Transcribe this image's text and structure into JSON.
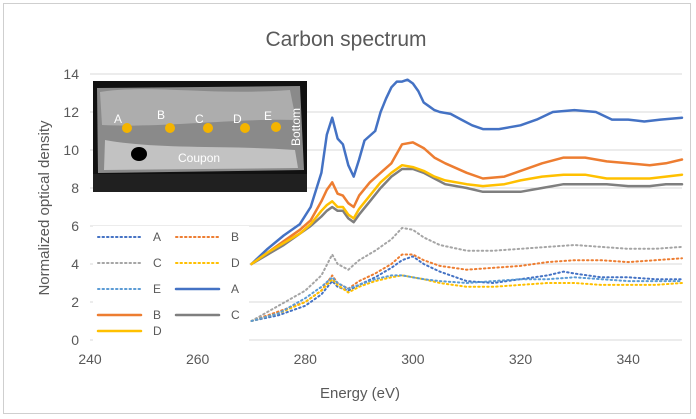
{
  "chart_data": {
    "type": "line",
    "title": "Carbon spectrum",
    "xlabel": "Energy (eV)",
    "ylabel": "Normalized optical density",
    "xlim": [
      240,
      350
    ],
    "ylim": [
      0,
      14
    ],
    "xticks": [
      240,
      260,
      280,
      300,
      320,
      340
    ],
    "yticks": [
      0,
      2,
      4,
      6,
      8,
      10,
      12,
      14
    ],
    "grid": "horizontal",
    "legend_position": "left-bottom, inside plot",
    "inset_image": {
      "description_labels": [
        "A",
        "B",
        "C",
        "D",
        "E"
      ],
      "coupon_label": "Coupon",
      "bottom_label": "Bottom"
    },
    "series": [
      {
        "name": "A",
        "style": "dotted",
        "color": "#4472c4",
        "points": [
          [
            270,
            1.0
          ],
          [
            275,
            1.3
          ],
          [
            280,
            1.8
          ],
          [
            283,
            2.4
          ],
          [
            285,
            3.1
          ],
          [
            286,
            2.8
          ],
          [
            288,
            2.6
          ],
          [
            290,
            2.9
          ],
          [
            293,
            3.3
          ],
          [
            296,
            3.8
          ],
          [
            298,
            4.2
          ],
          [
            300,
            4.4
          ],
          [
            302,
            4.0
          ],
          [
            305,
            3.6
          ],
          [
            310,
            3.1
          ],
          [
            315,
            3.0
          ],
          [
            320,
            3.2
          ],
          [
            325,
            3.4
          ],
          [
            328,
            3.6
          ],
          [
            330,
            3.5
          ],
          [
            335,
            3.3
          ],
          [
            340,
            3.3
          ],
          [
            345,
            3.2
          ],
          [
            350,
            3.2
          ]
        ]
      },
      {
        "name": "B",
        "style": "dotted",
        "color": "#ed7d31",
        "points": [
          [
            270,
            1.0
          ],
          [
            275,
            1.5
          ],
          [
            280,
            2.0
          ],
          [
            283,
            2.6
          ],
          [
            285,
            3.4
          ],
          [
            286,
            3.0
          ],
          [
            288,
            2.7
          ],
          [
            290,
            3.1
          ],
          [
            293,
            3.5
          ],
          [
            296,
            4.0
          ],
          [
            298,
            4.5
          ],
          [
            300,
            4.5
          ],
          [
            302,
            4.2
          ],
          [
            305,
            3.9
          ],
          [
            310,
            3.7
          ],
          [
            315,
            3.8
          ],
          [
            320,
            3.9
          ],
          [
            325,
            4.1
          ],
          [
            330,
            4.2
          ],
          [
            335,
            4.2
          ],
          [
            340,
            4.1
          ],
          [
            345,
            4.2
          ],
          [
            350,
            4.3
          ]
        ]
      },
      {
        "name": "C",
        "style": "dotted",
        "color": "#a5a5a5",
        "points": [
          [
            270,
            1.0
          ],
          [
            275,
            1.8
          ],
          [
            280,
            2.6
          ],
          [
            283,
            3.4
          ],
          [
            285,
            4.5
          ],
          [
            286,
            4.0
          ],
          [
            288,
            3.7
          ],
          [
            290,
            4.2
          ],
          [
            293,
            4.7
          ],
          [
            296,
            5.3
          ],
          [
            298,
            5.9
          ],
          [
            300,
            5.8
          ],
          [
            302,
            5.4
          ],
          [
            305,
            5.0
          ],
          [
            310,
            4.7
          ],
          [
            315,
            4.7
          ],
          [
            320,
            4.8
          ],
          [
            325,
            4.9
          ],
          [
            330,
            5.0
          ],
          [
            335,
            4.9
          ],
          [
            340,
            4.8
          ],
          [
            345,
            4.8
          ],
          [
            350,
            4.9
          ]
        ]
      },
      {
        "name": "D",
        "style": "dotted",
        "color": "#ffc000",
        "points": [
          [
            270,
            1.0
          ],
          [
            275,
            1.4
          ],
          [
            280,
            2.0
          ],
          [
            283,
            2.6
          ],
          [
            285,
            3.2
          ],
          [
            286,
            2.9
          ],
          [
            288,
            2.5
          ],
          [
            290,
            2.8
          ],
          [
            293,
            3.1
          ],
          [
            296,
            3.3
          ],
          [
            298,
            3.4
          ],
          [
            300,
            3.3
          ],
          [
            302,
            3.2
          ],
          [
            305,
            3.0
          ],
          [
            310,
            2.8
          ],
          [
            315,
            2.8
          ],
          [
            320,
            2.9
          ],
          [
            325,
            3.0
          ],
          [
            330,
            3.0
          ],
          [
            335,
            2.9
          ],
          [
            340,
            2.9
          ],
          [
            345,
            2.9
          ],
          [
            350,
            3.0
          ]
        ]
      },
      {
        "name": "E",
        "style": "dotted",
        "color": "#5b9bd5",
        "points": [
          [
            270,
            1.0
          ],
          [
            275,
            1.4
          ],
          [
            280,
            2.2
          ],
          [
            283,
            2.8
          ],
          [
            285,
            3.3
          ],
          [
            286,
            3.0
          ],
          [
            288,
            2.7
          ],
          [
            290,
            2.9
          ],
          [
            293,
            3.2
          ],
          [
            296,
            3.4
          ],
          [
            298,
            3.4
          ],
          [
            300,
            3.3
          ],
          [
            302,
            3.2
          ],
          [
            305,
            3.1
          ],
          [
            310,
            3.0
          ],
          [
            315,
            3.1
          ],
          [
            320,
            3.2
          ],
          [
            325,
            3.2
          ],
          [
            330,
            3.3
          ],
          [
            335,
            3.2
          ],
          [
            340,
            3.1
          ],
          [
            345,
            3.1
          ],
          [
            350,
            3.1
          ]
        ]
      },
      {
        "name": "A",
        "style": "solid",
        "color": "#4472c4",
        "points": [
          [
            270,
            4.0
          ],
          [
            273,
            4.8
          ],
          [
            276,
            5.5
          ],
          [
            279,
            6.1
          ],
          [
            281,
            7.0
          ],
          [
            283,
            8.8
          ],
          [
            284,
            10.8
          ],
          [
            285,
            11.7
          ],
          [
            286,
            10.6
          ],
          [
            287,
            10.3
          ],
          [
            288,
            9.2
          ],
          [
            289,
            8.6
          ],
          [
            290,
            9.5
          ],
          [
            291,
            10.5
          ],
          [
            293,
            11.0
          ],
          [
            294,
            12.0
          ],
          [
            295,
            12.7
          ],
          [
            296,
            13.3
          ],
          [
            297,
            13.6
          ],
          [
            298,
            13.6
          ],
          [
            299,
            13.7
          ],
          [
            300,
            13.5
          ],
          [
            301,
            13.1
          ],
          [
            302,
            12.5
          ],
          [
            303,
            12.3
          ],
          [
            304,
            12.1
          ],
          [
            305,
            12.0
          ],
          [
            307,
            11.9
          ],
          [
            309,
            11.6
          ],
          [
            311,
            11.3
          ],
          [
            313,
            11.1
          ],
          [
            316,
            11.1
          ],
          [
            318,
            11.2
          ],
          [
            320,
            11.3
          ],
          [
            323,
            11.6
          ],
          [
            326,
            12.0
          ],
          [
            330,
            12.1
          ],
          [
            334,
            12.0
          ],
          [
            337,
            11.6
          ],
          [
            340,
            11.6
          ],
          [
            343,
            11.5
          ],
          [
            346,
            11.6
          ],
          [
            350,
            11.7
          ]
        ]
      },
      {
        "name": "B",
        "style": "solid",
        "color": "#ed7d31",
        "points": [
          [
            270,
            4.0
          ],
          [
            273,
            4.6
          ],
          [
            276,
            5.2
          ],
          [
            279,
            5.8
          ],
          [
            281,
            6.3
          ],
          [
            283,
            7.3
          ],
          [
            284,
            7.9
          ],
          [
            285,
            8.3
          ],
          [
            286,
            7.7
          ],
          [
            287,
            7.6
          ],
          [
            288,
            7.2
          ],
          [
            289,
            7.0
          ],
          [
            290,
            7.6
          ],
          [
            292,
            8.3
          ],
          [
            294,
            8.8
          ],
          [
            296,
            9.3
          ],
          [
            298,
            10.3
          ],
          [
            300,
            10.4
          ],
          [
            302,
            10.1
          ],
          [
            304,
            9.6
          ],
          [
            306,
            9.3
          ],
          [
            310,
            8.8
          ],
          [
            313,
            8.5
          ],
          [
            317,
            8.6
          ],
          [
            320,
            8.9
          ],
          [
            324,
            9.3
          ],
          [
            328,
            9.6
          ],
          [
            332,
            9.6
          ],
          [
            336,
            9.4
          ],
          [
            340,
            9.3
          ],
          [
            344,
            9.2
          ],
          [
            347,
            9.3
          ],
          [
            350,
            9.5
          ]
        ]
      },
      {
        "name": "C",
        "style": "solid",
        "color": "#7f7f7f",
        "points": [
          [
            270,
            4.0
          ],
          [
            273,
            4.5
          ],
          [
            276,
            5.0
          ],
          [
            279,
            5.6
          ],
          [
            281,
            6.0
          ],
          [
            283,
            6.5
          ],
          [
            284,
            6.8
          ],
          [
            285,
            7.0
          ],
          [
            286,
            6.8
          ],
          [
            287,
            6.8
          ],
          [
            288,
            6.4
          ],
          [
            289,
            6.2
          ],
          [
            290,
            6.6
          ],
          [
            292,
            7.3
          ],
          [
            294,
            8.0
          ],
          [
            296,
            8.6
          ],
          [
            298,
            9.0
          ],
          [
            300,
            9.0
          ],
          [
            302,
            8.8
          ],
          [
            304,
            8.5
          ],
          [
            306,
            8.2
          ],
          [
            310,
            8.0
          ],
          [
            313,
            7.8
          ],
          [
            317,
            7.8
          ],
          [
            320,
            7.8
          ],
          [
            324,
            8.0
          ],
          [
            328,
            8.2
          ],
          [
            332,
            8.2
          ],
          [
            336,
            8.2
          ],
          [
            340,
            8.1
          ],
          [
            344,
            8.1
          ],
          [
            347,
            8.2
          ],
          [
            350,
            8.2
          ]
        ]
      },
      {
        "name": "D",
        "style": "solid",
        "color": "#ffc000",
        "points": [
          [
            270,
            4.0
          ],
          [
            273,
            4.6
          ],
          [
            276,
            5.1
          ],
          [
            279,
            5.6
          ],
          [
            281,
            6.1
          ],
          [
            283,
            6.8
          ],
          [
            284,
            7.1
          ],
          [
            285,
            7.3
          ],
          [
            286,
            7.0
          ],
          [
            287,
            7.0
          ],
          [
            288,
            6.6
          ],
          [
            289,
            6.4
          ],
          [
            290,
            6.9
          ],
          [
            292,
            7.6
          ],
          [
            294,
            8.3
          ],
          [
            296,
            8.8
          ],
          [
            298,
            9.2
          ],
          [
            300,
            9.1
          ],
          [
            302,
            8.9
          ],
          [
            304,
            8.6
          ],
          [
            306,
            8.4
          ],
          [
            310,
            8.2
          ],
          [
            313,
            8.1
          ],
          [
            317,
            8.2
          ],
          [
            320,
            8.4
          ],
          [
            324,
            8.6
          ],
          [
            328,
            8.7
          ],
          [
            332,
            8.7
          ],
          [
            336,
            8.5
          ],
          [
            340,
            8.5
          ],
          [
            344,
            8.5
          ],
          [
            347,
            8.6
          ],
          [
            350,
            8.7
          ]
        ]
      }
    ]
  }
}
